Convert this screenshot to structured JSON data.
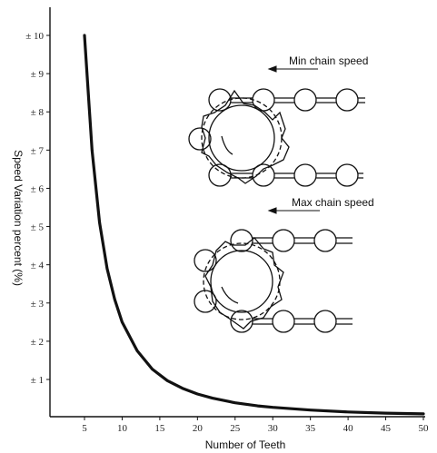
{
  "chart_data": {
    "type": "line",
    "xlabel": "Number of Teeth",
    "ylabel": "Speed Variation percent (%)",
    "xlim": [
      0,
      50
    ],
    "ylim": [
      0,
      10
    ],
    "grid": false,
    "x_ticks": [
      5,
      10,
      15,
      20,
      25,
      30,
      35,
      40,
      45,
      50
    ],
    "x_tick_labels": [
      "5",
      "10",
      "15",
      "20",
      "25",
      "30",
      "35",
      "40",
      "45",
      "50"
    ],
    "y_ticks": [
      1,
      2,
      3,
      4,
      5,
      6,
      7,
      8,
      9,
      10
    ],
    "y_tick_labels": [
      "± 1",
      "± 2",
      "± 3",
      "± 4",
      "± 5",
      "± 6",
      "± 7",
      "± 8",
      "± 9",
      "± 10"
    ],
    "series": [
      {
        "x": [
          5,
          6,
          7,
          8,
          9,
          10,
          12,
          14,
          16,
          18,
          20,
          22,
          25,
          28,
          30,
          35,
          40,
          45,
          50
        ],
        "y": [
          10.0,
          7.0,
          5.1,
          3.9,
          3.1,
          2.5,
          1.75,
          1.27,
          0.97,
          0.77,
          0.62,
          0.51,
          0.39,
          0.31,
          0.27,
          0.2,
          0.15,
          0.12,
          0.1
        ]
      }
    ],
    "annotations": [
      {
        "text": "Min chain speed"
      },
      {
        "text": "Max chain speed"
      }
    ]
  },
  "colors": {
    "line": "#111111",
    "axis": "#111111"
  }
}
